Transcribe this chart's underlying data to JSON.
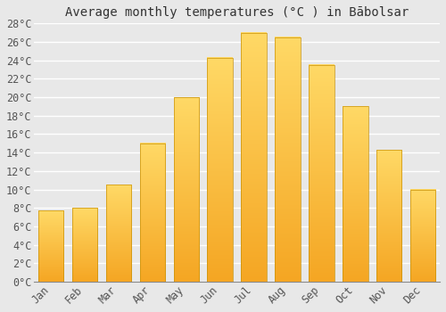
{
  "title": "Average monthly temperatures (°C ) in Bābolsar",
  "months": [
    "Jan",
    "Feb",
    "Mar",
    "Apr",
    "May",
    "Jun",
    "Jul",
    "Aug",
    "Sep",
    "Oct",
    "Nov",
    "Dec"
  ],
  "values": [
    7.7,
    8.0,
    10.5,
    15.0,
    20.0,
    24.3,
    27.0,
    26.5,
    23.5,
    19.0,
    14.3,
    10.0
  ],
  "bar_color_bottom": "#F5A623",
  "bar_color_top": "#FFD966",
  "bar_edge_color": "#C8920A",
  "background_color": "#e8e8e8",
  "plot_bg_color": "#e8e8e8",
  "grid_color": "#ffffff",
  "ylim": [
    0,
    28
  ],
  "ytick_step": 2,
  "title_fontsize": 10,
  "tick_fontsize": 8.5,
  "font_family": "monospace",
  "bar_width": 0.75
}
